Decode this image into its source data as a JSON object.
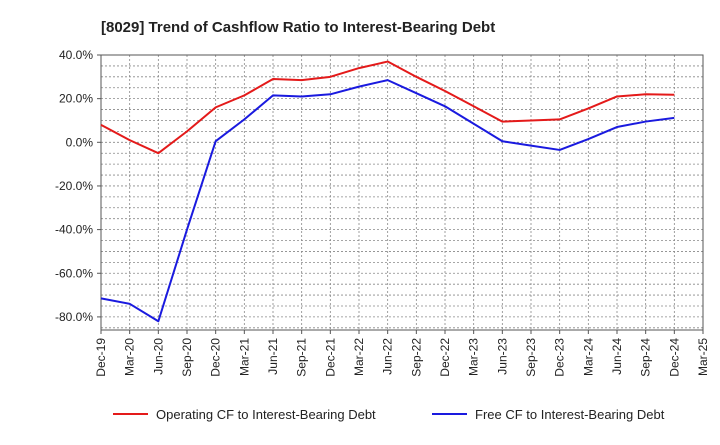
{
  "chart_data": {
    "type": "line",
    "title": "[8029]  Trend of Cashflow Ratio to Interest-Bearing Debt",
    "xlabel": "",
    "ylabel": "",
    "categories": [
      "Dec-19",
      "Mar-20",
      "Jun-20",
      "Sep-20",
      "Dec-20",
      "Mar-21",
      "Jun-21",
      "Sep-21",
      "Dec-21",
      "Mar-22",
      "Jun-22",
      "Sep-22",
      "Dec-22",
      "Mar-23",
      "Jun-23",
      "Sep-23",
      "Dec-23",
      "Mar-24",
      "Jun-24",
      "Sep-24",
      "Dec-24",
      "Mar-25"
    ],
    "ylim": [
      -86,
      40
    ],
    "yticks": [
      {
        "value": 40,
        "label": "40.0%"
      },
      {
        "value": 20,
        "label": "20.0%"
      },
      {
        "value": 0,
        "label": "0.0%"
      },
      {
        "value": -20,
        "label": "-20.0%"
      },
      {
        "value": -40,
        "label": "-40.0%"
      },
      {
        "value": -60,
        "label": "-60.0%"
      },
      {
        "value": -80,
        "label": "-80.0%"
      }
    ],
    "grid": true,
    "legend_position": "bottom",
    "series": [
      {
        "name": "Operating CF to Interest-Bearing Debt",
        "color": "#e41a1a",
        "values": [
          8.0,
          1.0,
          -5.0,
          5.0,
          16.0,
          21.5,
          29.0,
          28.5,
          30.0,
          34.0,
          37.0,
          30.0,
          23.5,
          16.5,
          9.5,
          10.0,
          10.5,
          15.5,
          21.0,
          22.0,
          21.8,
          null
        ]
      },
      {
        "name": "Free CF to Interest-Bearing Debt",
        "color": "#1a1adf",
        "values": [
          -71.5,
          -74.0,
          -82.0,
          -40.0,
          0.5,
          10.5,
          21.5,
          21.0,
          22.0,
          25.5,
          28.5,
          22.5,
          16.5,
          8.5,
          0.5,
          -1.5,
          -3.5,
          1.5,
          7.0,
          9.5,
          11.2,
          null
        ]
      }
    ]
  }
}
